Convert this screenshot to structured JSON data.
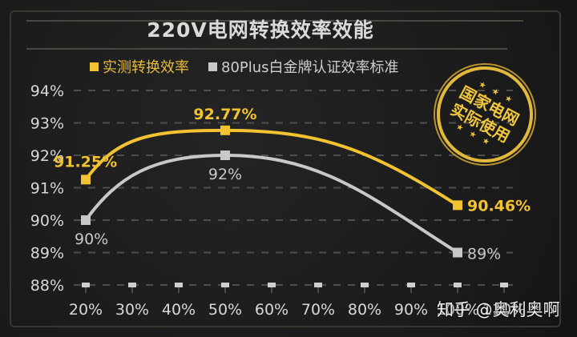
{
  "title": "220V电网转换效率效能",
  "legend": [
    {
      "label": "实测转换效率",
      "color": "#f2c230"
    },
    {
      "label": "80Plus白金牌认证效率标准",
      "color": "#c8c8c8"
    }
  ],
  "stamp": {
    "line1": "国家电网",
    "line2": "实际使用",
    "stars_top": "★ ★ ★",
    "stars_bottom": "★ ★ ★"
  },
  "watermark": "知乎 @奥利奥啊",
  "colors": {
    "measured": "#f2c230",
    "standard": "#c8c8c8",
    "grid": "#4e4e4e",
    "axis_text": "#d8d8d8"
  },
  "chart_data": {
    "type": "line",
    "title": "220V电网转换效率效能",
    "xlabel": "",
    "ylabel": "",
    "categories": [
      "20%",
      "30%",
      "40%",
      "50%",
      "60%",
      "70%",
      "80%",
      "90%",
      "100%",
      "110%"
    ],
    "yticks": [
      "94%",
      "93%",
      "92%",
      "91%",
      "90%",
      "89%",
      "88%"
    ],
    "ylim": [
      88,
      94
    ],
    "grid": true,
    "legend_position": "top",
    "series": [
      {
        "name": "实测转换效率",
        "points": [
          {
            "x": "20%",
            "y": 91.25,
            "label": "91.25%"
          },
          {
            "x": "50%",
            "y": 92.77,
            "label": "92.77%"
          },
          {
            "x": "100%",
            "y": 90.46,
            "label": "90.46%"
          }
        ]
      },
      {
        "name": "80Plus白金牌认证效率标准",
        "points": [
          {
            "x": "20%",
            "y": 90,
            "label": "90%"
          },
          {
            "x": "50%",
            "y": 92,
            "label": "92%"
          },
          {
            "x": "100%",
            "y": 89,
            "label": "89%"
          }
        ]
      }
    ]
  }
}
